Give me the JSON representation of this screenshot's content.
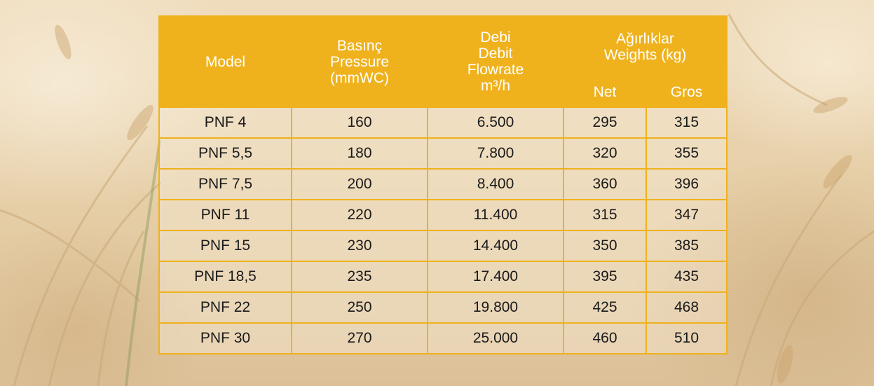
{
  "colors": {
    "header_bg": "#efb21d",
    "header_text": "#ffffff",
    "grid": "#efb21d",
    "body_text": "#1a1a1a"
  },
  "table": {
    "headers": {
      "model": "Model",
      "pressure_l1": "Basınç",
      "pressure_l2": "Pressure",
      "pressure_l3": "(mmWC)",
      "flow_l1": "Debi",
      "flow_l2": "Debit",
      "flow_l3": "Flowrate",
      "flow_l4": "m³/h",
      "weights_l1": "Ağırlıklar",
      "weights_l2": "Weights (kg)",
      "net": "Net",
      "gros": "Gros"
    },
    "rows": [
      {
        "model": "PNF 4",
        "pressure": "160",
        "flow": "6.500",
        "net": "295",
        "gros": "315"
      },
      {
        "model": "PNF 5,5",
        "pressure": "180",
        "flow": "7.800",
        "net": "320",
        "gros": "355"
      },
      {
        "model": "PNF 7,5",
        "pressure": "200",
        "flow": "8.400",
        "net": "360",
        "gros": "396"
      },
      {
        "model": "PNF 11",
        "pressure": "220",
        "flow": "11.400",
        "net": "315",
        "gros": "347"
      },
      {
        "model": "PNF 15",
        "pressure": "230",
        "flow": "14.400",
        "net": "350",
        "gros": "385"
      },
      {
        "model": "PNF 18,5",
        "pressure": "235",
        "flow": "17.400",
        "net": "395",
        "gros": "435"
      },
      {
        "model": "PNF 22",
        "pressure": "250",
        "flow": "19.800",
        "net": "425",
        "gros": "468"
      },
      {
        "model": "PNF 30",
        "pressure": "270",
        "flow": "25.000",
        "net": "460",
        "gros": "510"
      }
    ]
  }
}
